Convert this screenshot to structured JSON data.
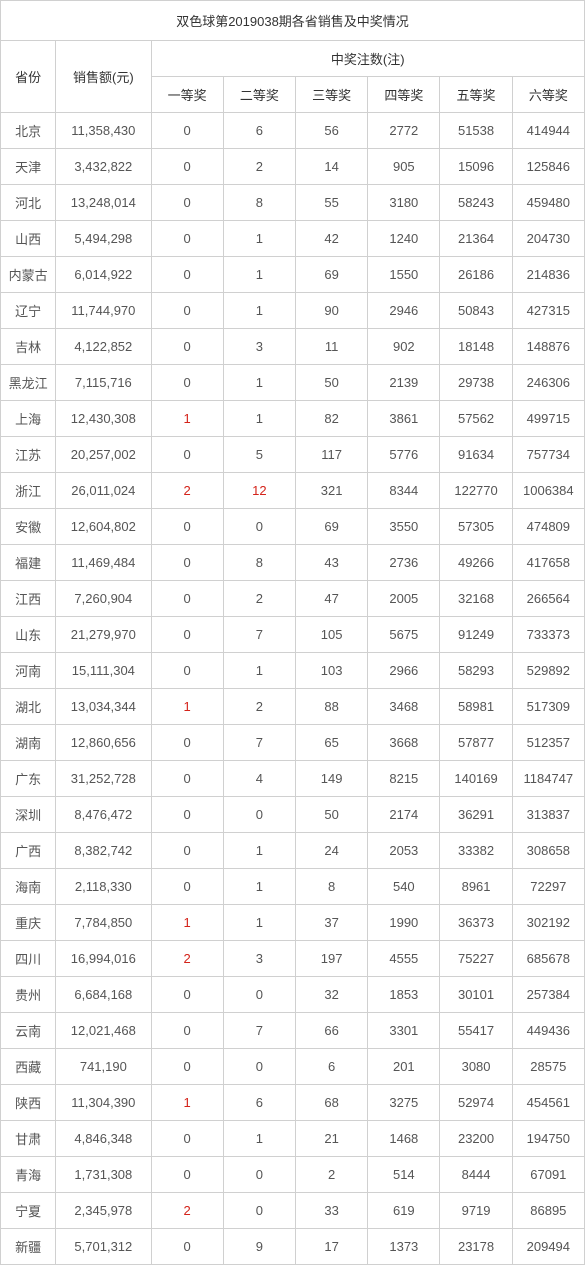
{
  "title": "双色球第2019038期各省销售及中奖情况",
  "headers": {
    "province": "省份",
    "sales": "销售额(元)",
    "prize_group": "中奖注数(注)",
    "prizes": [
      "一等奖",
      "二等奖",
      "三等奖",
      "四等奖",
      "五等奖",
      "六等奖"
    ]
  },
  "columns": [
    "province",
    "sales",
    "p1",
    "p2",
    "p3",
    "p4",
    "p5",
    "p6"
  ],
  "highlight_color": "#d4231a",
  "rows": [
    {
      "province": "北京",
      "sales": "11,358,430",
      "p1": "0",
      "p2": "6",
      "p3": "56",
      "p4": "2772",
      "p5": "51538",
      "p6": "414944"
    },
    {
      "province": "天津",
      "sales": "3,432,822",
      "p1": "0",
      "p2": "2",
      "p3": "14",
      "p4": "905",
      "p5": "15096",
      "p6": "125846"
    },
    {
      "province": "河北",
      "sales": "13,248,014",
      "p1": "0",
      "p2": "8",
      "p3": "55",
      "p4": "3180",
      "p5": "58243",
      "p6": "459480"
    },
    {
      "province": "山西",
      "sales": "5,494,298",
      "p1": "0",
      "p2": "1",
      "p3": "42",
      "p4": "1240",
      "p5": "21364",
      "p6": "204730"
    },
    {
      "province": "内蒙古",
      "sales": "6,014,922",
      "p1": "0",
      "p2": "1",
      "p3": "69",
      "p4": "1550",
      "p5": "26186",
      "p6": "214836"
    },
    {
      "province": "辽宁",
      "sales": "11,744,970",
      "p1": "0",
      "p2": "1",
      "p3": "90",
      "p4": "2946",
      "p5": "50843",
      "p6": "427315"
    },
    {
      "province": "吉林",
      "sales": "4,122,852",
      "p1": "0",
      "p2": "3",
      "p3": "11",
      "p4": "902",
      "p5": "18148",
      "p6": "148876"
    },
    {
      "province": "黑龙江",
      "sales": "7,115,716",
      "p1": "0",
      "p2": "1",
      "p3": "50",
      "p4": "2139",
      "p5": "29738",
      "p6": "246306"
    },
    {
      "province": "上海",
      "sales": "12,430,308",
      "p1": "1",
      "p1_hl": true,
      "p2": "1",
      "p3": "82",
      "p4": "3861",
      "p5": "57562",
      "p6": "499715"
    },
    {
      "province": "江苏",
      "sales": "20,257,002",
      "p1": "0",
      "p2": "5",
      "p3": "117",
      "p4": "5776",
      "p5": "91634",
      "p6": "757734"
    },
    {
      "province": "浙江",
      "sales": "26,011,024",
      "p1": "2",
      "p1_hl": true,
      "p2": "12",
      "p2_hl": true,
      "p3": "321",
      "p4": "8344",
      "p5": "122770",
      "p6": "1006384"
    },
    {
      "province": "安徽",
      "sales": "12,604,802",
      "p1": "0",
      "p2": "0",
      "p3": "69",
      "p4": "3550",
      "p5": "57305",
      "p6": "474809"
    },
    {
      "province": "福建",
      "sales": "11,469,484",
      "p1": "0",
      "p2": "8",
      "p3": "43",
      "p4": "2736",
      "p5": "49266",
      "p6": "417658"
    },
    {
      "province": "江西",
      "sales": "7,260,904",
      "p1": "0",
      "p2": "2",
      "p3": "47",
      "p4": "2005",
      "p5": "32168",
      "p6": "266564"
    },
    {
      "province": "山东",
      "sales": "21,279,970",
      "p1": "0",
      "p2": "7",
      "p3": "105",
      "p4": "5675",
      "p5": "91249",
      "p6": "733373"
    },
    {
      "province": "河南",
      "sales": "15,111,304",
      "p1": "0",
      "p2": "1",
      "p3": "103",
      "p4": "2966",
      "p5": "58293",
      "p6": "529892"
    },
    {
      "province": "湖北",
      "sales": "13,034,344",
      "p1": "1",
      "p1_hl": true,
      "p2": "2",
      "p3": "88",
      "p4": "3468",
      "p5": "58981",
      "p6": "517309"
    },
    {
      "province": "湖南",
      "sales": "12,860,656",
      "p1": "0",
      "p2": "7",
      "p3": "65",
      "p4": "3668",
      "p5": "57877",
      "p6": "512357"
    },
    {
      "province": "广东",
      "sales": "31,252,728",
      "p1": "0",
      "p2": "4",
      "p3": "149",
      "p4": "8215",
      "p5": "140169",
      "p6": "1184747"
    },
    {
      "province": "深圳",
      "sales": "8,476,472",
      "p1": "0",
      "p2": "0",
      "p3": "50",
      "p4": "2174",
      "p5": "36291",
      "p6": "313837"
    },
    {
      "province": "广西",
      "sales": "8,382,742",
      "p1": "0",
      "p2": "1",
      "p3": "24",
      "p4": "2053",
      "p5": "33382",
      "p6": "308658"
    },
    {
      "province": "海南",
      "sales": "2,118,330",
      "p1": "0",
      "p2": "1",
      "p3": "8",
      "p4": "540",
      "p5": "8961",
      "p6": "72297"
    },
    {
      "province": "重庆",
      "sales": "7,784,850",
      "p1": "1",
      "p1_hl": true,
      "p2": "1",
      "p3": "37",
      "p4": "1990",
      "p5": "36373",
      "p6": "302192"
    },
    {
      "province": "四川",
      "sales": "16,994,016",
      "p1": "2",
      "p1_hl": true,
      "p2": "3",
      "p3": "197",
      "p4": "4555",
      "p5": "75227",
      "p6": "685678"
    },
    {
      "province": "贵州",
      "sales": "6,684,168",
      "p1": "0",
      "p2": "0",
      "p3": "32",
      "p4": "1853",
      "p5": "30101",
      "p6": "257384"
    },
    {
      "province": "云南",
      "sales": "12,021,468",
      "p1": "0",
      "p2": "7",
      "p3": "66",
      "p4": "3301",
      "p5": "55417",
      "p6": "449436"
    },
    {
      "province": "西藏",
      "sales": "741,190",
      "p1": "0",
      "p2": "0",
      "p3": "6",
      "p4": "201",
      "p5": "3080",
      "p6": "28575"
    },
    {
      "province": "陕西",
      "sales": "11,304,390",
      "p1": "1",
      "p1_hl": true,
      "p2": "6",
      "p3": "68",
      "p4": "3275",
      "p5": "52974",
      "p6": "454561"
    },
    {
      "province": "甘肃",
      "sales": "4,846,348",
      "p1": "0",
      "p2": "1",
      "p3": "21",
      "p4": "1468",
      "p5": "23200",
      "p6": "194750"
    },
    {
      "province": "青海",
      "sales": "1,731,308",
      "p1": "0",
      "p2": "0",
      "p3": "2",
      "p4": "514",
      "p5": "8444",
      "p6": "67091"
    },
    {
      "province": "宁夏",
      "sales": "2,345,978",
      "p1": "2",
      "p1_hl": true,
      "p2": "0",
      "p3": "33",
      "p4": "619",
      "p5": "9719",
      "p6": "86895"
    },
    {
      "province": "新疆",
      "sales": "5,701,312",
      "p1": "0",
      "p2": "9",
      "p3": "17",
      "p4": "1373",
      "p5": "23178",
      "p6": "209494"
    }
  ]
}
